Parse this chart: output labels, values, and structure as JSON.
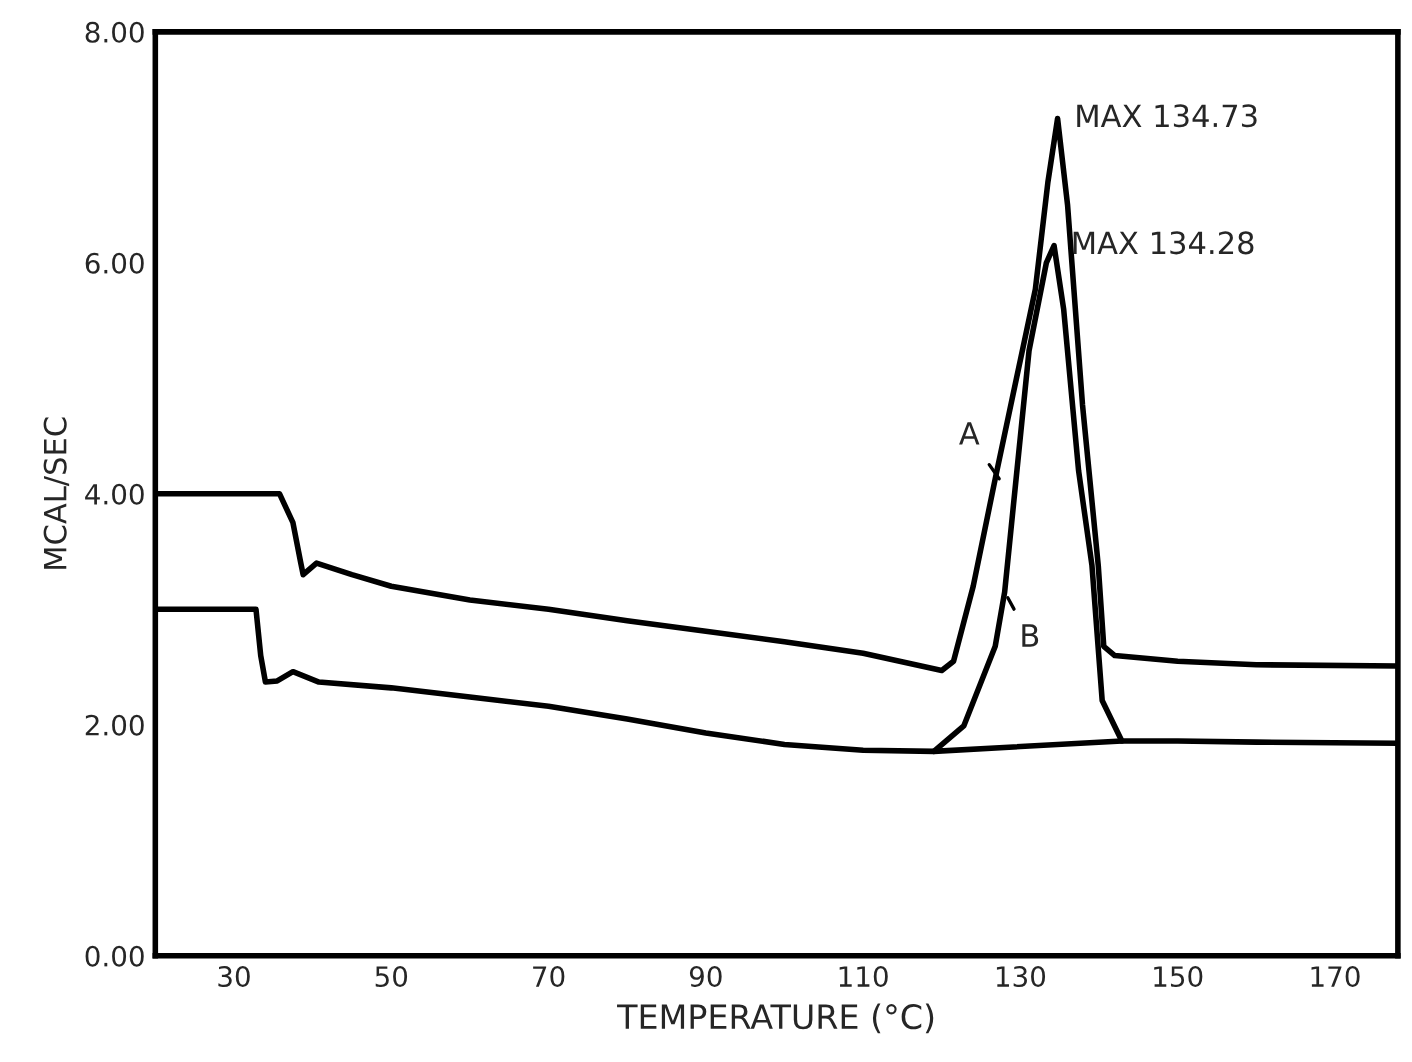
{
  "chart_data": {
    "type": "line",
    "xlabel": "TEMPERATURE (°C)",
    "ylabel": "MCAL/SEC",
    "xlim": [
      20,
      178
    ],
    "ylim": [
      0,
      8
    ],
    "xticks": [
      30,
      50,
      70,
      90,
      110,
      130,
      150,
      170
    ],
    "yticks": [
      {
        "value": 0,
        "label": "0.00"
      },
      {
        "value": 2,
        "label": "2.00"
      },
      {
        "value": 4,
        "label": "4.00"
      },
      {
        "value": 6,
        "label": "6.00"
      },
      {
        "value": 8,
        "label": "8.00"
      }
    ],
    "grid": false,
    "marker": "none",
    "line_style": "solid",
    "series": [
      {
        "name": "A",
        "color": "#000000",
        "x": [
          20,
          35.8,
          37.5,
          38.5,
          38.8,
          40.5,
          45,
          50,
          60,
          70,
          80,
          90,
          100,
          110,
          120,
          121.5,
          124,
          126.8,
          129.5,
          131.9,
          133.5,
          134.73,
          136,
          137.9,
          139.9,
          140.6,
          142,
          150,
          160,
          178
        ],
        "values": [
          4.0,
          4.0,
          3.75,
          3.4,
          3.3,
          3.4,
          3.3,
          3.2,
          3.08,
          3.0,
          2.9,
          2.81,
          2.72,
          2.62,
          2.47,
          2.55,
          3.2,
          4.13,
          5.0,
          5.77,
          6.7,
          7.25,
          6.5,
          4.77,
          3.38,
          2.68,
          2.6,
          2.55,
          2.52,
          2.51
        ]
      },
      {
        "name": "B",
        "color": "#000000",
        "x": [
          20,
          32.8,
          33.4,
          34,
          35.5,
          37.5,
          40.8,
          50,
          60,
          70,
          80,
          90,
          100,
          110,
          119,
          122.8,
          126.8,
          128,
          131.1,
          133.3,
          134.28,
          135.5,
          137.4,
          139.1,
          140.4,
          142.9,
          150,
          160,
          178
        ],
        "values": [
          3.0,
          3.0,
          2.6,
          2.37,
          2.38,
          2.46,
          2.37,
          2.32,
          2.24,
          2.16,
          2.05,
          1.93,
          1.83,
          1.78,
          1.77,
          1.99,
          2.68,
          3.15,
          5.24,
          6.0,
          6.15,
          5.6,
          4.2,
          3.38,
          2.21,
          1.86,
          1.86,
          1.85,
          1.84
        ]
      },
      {
        "color": "#000000",
        "x": [
          119,
          142.9
        ],
        "values": [
          1.77,
          1.86
        ]
      }
    ],
    "annotations": [
      {
        "text": "MAX 134.73",
        "x": 134.73,
        "y": 7.25
      },
      {
        "text": "MAX 134.28",
        "x": 134.28,
        "y": 6.15
      }
    ]
  }
}
